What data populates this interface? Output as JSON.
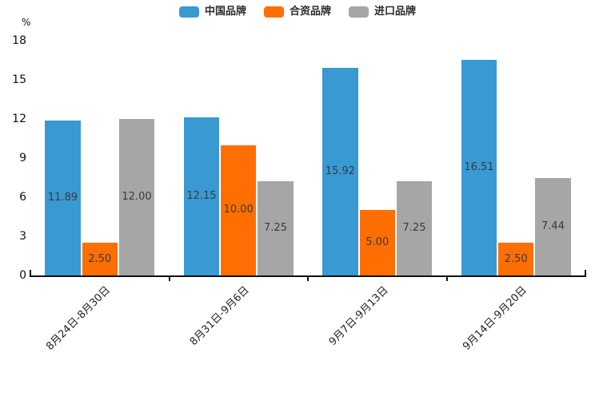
{
  "chart_data": {
    "type": "bar",
    "title": "",
    "unit": "%",
    "categories": [
      "8月24日-8月30日",
      "8月31日-9月6日",
      "9月7日-9月13日",
      "9月14日-9月20日"
    ],
    "series": [
      {
        "name": "中国品牌",
        "color": "#3899d3",
        "values": [
          11.89,
          12.15,
          15.92,
          16.51
        ],
        "labels": [
          "11.89",
          "12.15",
          "15.92",
          "16.51"
        ]
      },
      {
        "name": "合资品牌",
        "color": "#ff6e00",
        "values": [
          2.5,
          10.0,
          5.0,
          2.5
        ],
        "labels": [
          "2.50",
          "10.00",
          "5.00",
          "2.50"
        ]
      },
      {
        "name": "进口品牌",
        "color": "#a6a6a6",
        "values": [
          12.0,
          7.25,
          7.25,
          7.44
        ],
        "labels": [
          "12.00",
          "7.25",
          "7.25",
          "7.44"
        ]
      }
    ],
    "yticks": [
      "18",
      "15",
      "12",
      "9",
      "6",
      "3",
      "0"
    ],
    "ylim": [
      0,
      18
    ],
    "grid": false,
    "legend_position": "top",
    "value_label_position": "inside-center",
    "axis_color": "#111111",
    "value_label_color": "#3b3b3b"
  }
}
